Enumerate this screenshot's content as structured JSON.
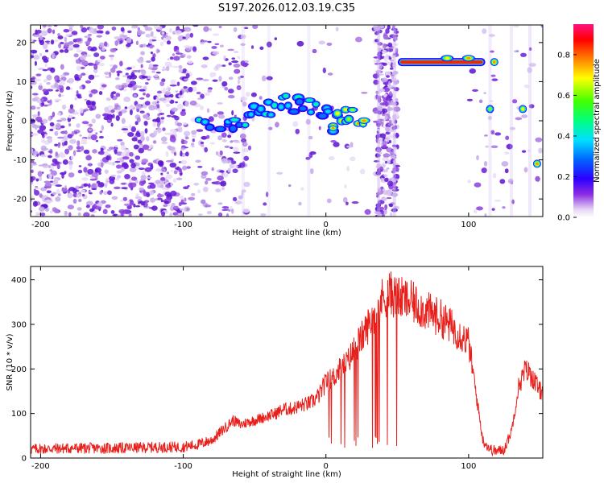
{
  "title": "S197.2026.012.03.19.C35",
  "chart_data": [
    {
      "type": "heatmap",
      "xlabel": "Height of straight line (km)",
      "ylabel": "Frequency (Hz)",
      "xlim": [
        -207,
        152
      ],
      "ylim": [
        -24.5,
        24.5
      ],
      "xticks": [
        -200,
        -100,
        0,
        100
      ],
      "yticks": [
        -20,
        -10,
        0,
        10,
        20
      ],
      "xtick_labels": [
        "-200",
        "-100",
        "0",
        "100"
      ],
      "ytick_labels": [
        "-20",
        "-10",
        "0",
        "10",
        "20"
      ],
      "colorbar": {
        "label": "Normalized spectral amplitude",
        "ticks": [
          0.0,
          0.2,
          0.4,
          0.6,
          0.8
        ],
        "tick_labels": [
          "0.0",
          "0.2",
          "0.4",
          "0.6",
          "0.8"
        ],
        "range": [
          0,
          0.95
        ]
      },
      "features": [
        {
          "name": "wandering track",
          "x_range": [
            -90,
            35
          ],
          "freq_path": [
            [
              -90,
              -1
            ],
            [
              -70,
              -1
            ],
            [
              -60,
              0
            ],
            [
              -50,
              2
            ],
            [
              -40,
              3
            ],
            [
              -30,
              5
            ],
            [
              -20,
              4
            ],
            [
              -10,
              3
            ],
            [
              0,
              2
            ],
            [
              5,
              -1
            ],
            [
              10,
              1
            ],
            [
              20,
              1
            ],
            [
              30,
              1
            ]
          ]
        },
        {
          "name": "strong tone",
          "x_range": [
            52,
            110
          ],
          "frequency": 15
        },
        {
          "name": "isolated patch",
          "x": 118,
          "frequency": 15
        },
        {
          "name": "isolated patch",
          "x": 115,
          "frequency": 3
        },
        {
          "name": "isolated patch",
          "x": 138,
          "frequency": 3
        },
        {
          "name": "isolated patch",
          "x": 148,
          "frequency": -11
        }
      ]
    },
    {
      "type": "line",
      "xlabel": "Height of straight line (km)",
      "ylabel": "SNR (10 * v/v)",
      "xlim": [
        -207,
        152
      ],
      "ylim": [
        0,
        430
      ],
      "xticks": [
        -200,
        -100,
        0,
        100
      ],
      "yticks": [
        0,
        100,
        200,
        300,
        400
      ],
      "xtick_labels": [
        "-200",
        "-100",
        "0",
        "100"
      ],
      "ytick_labels": [
        "0",
        "100",
        "200",
        "300",
        "400"
      ],
      "series": [
        {
          "name": "SNR",
          "color": "#e8201c",
          "x": [
            -207,
            -180,
            -150,
            -120,
            -100,
            -90,
            -80,
            -70,
            -65,
            -60,
            -55,
            -50,
            -45,
            -40,
            -35,
            -30,
            -25,
            -20,
            -15,
            -10,
            -5,
            0,
            5,
            10,
            15,
            20,
            25,
            30,
            35,
            40,
            45,
            50,
            55,
            60,
            70,
            80,
            90,
            100,
            105,
            110,
            115,
            120,
            125,
            130,
            135,
            140,
            145,
            150
          ],
          "values": [
            20,
            22,
            22,
            24,
            25,
            30,
            40,
            70,
            85,
            75,
            80,
            85,
            90,
            95,
            100,
            110,
            110,
            115,
            120,
            125,
            140,
            170,
            180,
            200,
            215,
            245,
            270,
            300,
            330,
            360,
            370,
            360,
            355,
            350,
            330,
            315,
            290,
            260,
            150,
            40,
            20,
            15,
            20,
            60,
            160,
            200,
            180,
            150
          ]
        }
      ]
    }
  ]
}
